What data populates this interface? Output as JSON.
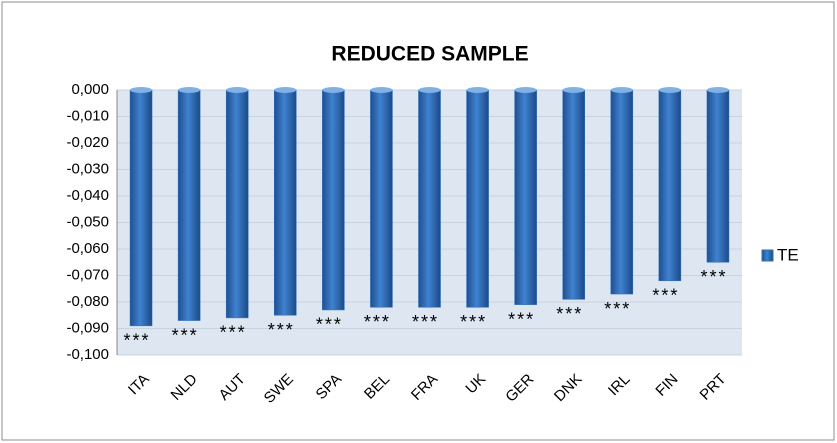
{
  "chart_data": {
    "type": "bar",
    "title": "REDUCED SAMPLE",
    "categories": [
      "ITA",
      "NLD",
      "AUT",
      "SWE",
      "SPA",
      "BEL",
      "FRA",
      "UK",
      "GER",
      "DNK",
      "IRL",
      "FIN",
      "PRT"
    ],
    "series": [
      {
        "name": "TE",
        "color": "#2f6fba",
        "values": [
          -0.089,
          -0.087,
          -0.086,
          -0.085,
          -0.083,
          -0.082,
          -0.082,
          -0.082,
          -0.081,
          -0.079,
          -0.077,
          -0.072,
          -0.065
        ]
      }
    ],
    "annotations": [
      "***",
      "***",
      "***",
      "***",
      "***",
      "***",
      "***",
      "***",
      "***",
      "***",
      "***",
      "***",
      "***"
    ],
    "ylim": [
      -0.1,
      0
    ],
    "yticks": [
      {
        "value": 0,
        "label": "0,000"
      },
      {
        "value": -0.01,
        "label": "-0,010"
      },
      {
        "value": -0.02,
        "label": "-0,020"
      },
      {
        "value": -0.03,
        "label": "-0,030"
      },
      {
        "value": -0.04,
        "label": "-0,040"
      },
      {
        "value": -0.05,
        "label": "-0,050"
      },
      {
        "value": -0.06,
        "label": "-0,060"
      },
      {
        "value": -0.07,
        "label": "-0,070"
      },
      {
        "value": -0.08,
        "label": "-0,080"
      },
      {
        "value": -0.09,
        "label": "-0,090"
      },
      {
        "value": -0.1,
        "label": "-0,100"
      }
    ],
    "grid": true,
    "legend": "right"
  }
}
